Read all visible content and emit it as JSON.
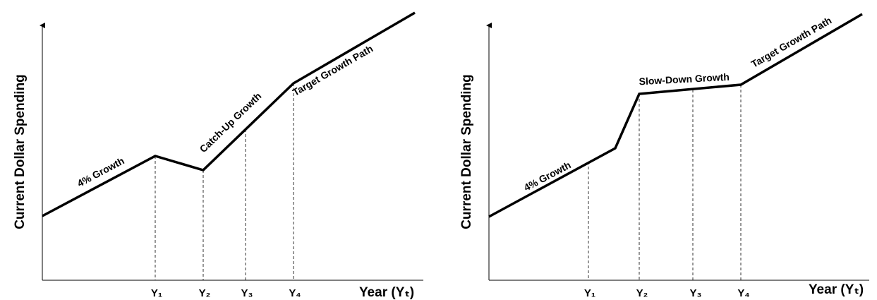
{
  "panels": [
    {
      "y_axis_label": "Current Dollar Spending",
      "x_axis_label": "Year (Yₜ)",
      "ticks": [
        "Y₁",
        "Y₂",
        "Y₃",
        "Y₄"
      ],
      "segment_labels": [
        "4% Growth",
        "Catch-Up Growth",
        "Target Growth Path"
      ]
    },
    {
      "y_axis_label": "Current Dollar Spending",
      "x_axis_label": "Year (Yₜ)",
      "ticks": [
        "Y₁",
        "Y₂",
        "Y₃",
        "Y₄"
      ],
      "segment_labels": [
        "4% Growth",
        "Slow-Down Growth",
        "Target Growth Path"
      ]
    }
  ]
}
